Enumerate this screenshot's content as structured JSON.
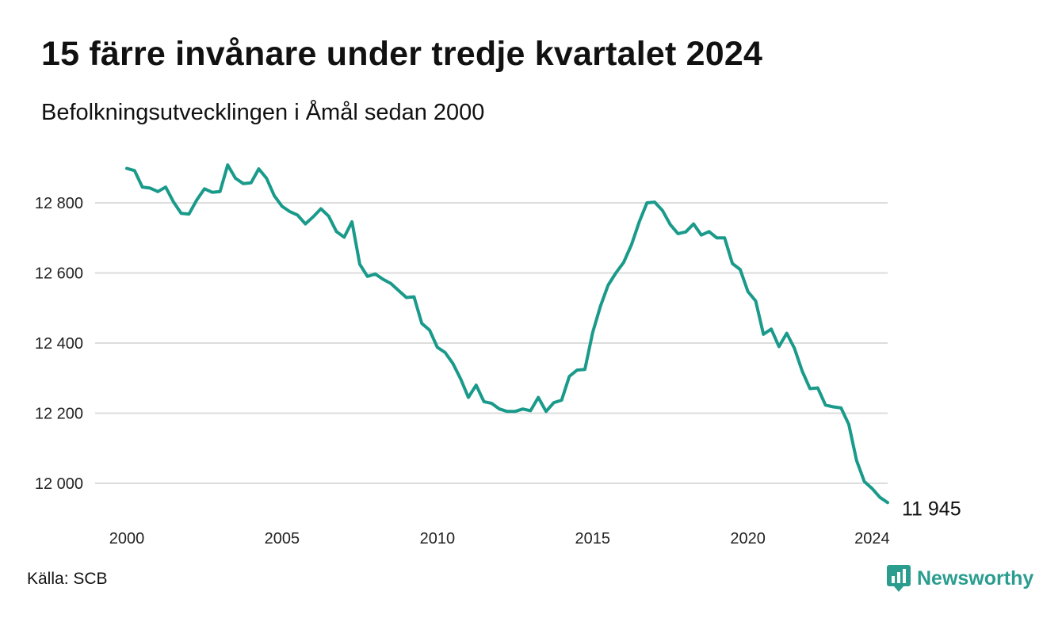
{
  "title": "15 färre invånare under tredje kvartalet 2024",
  "subtitle": "Befolkningsutvecklingen i Åmål sedan 2000",
  "source": "Källa: SCB",
  "brand": {
    "name": "Newsworthy",
    "icon": "newsworthy-logo-icon",
    "color": "#2a9d8f"
  },
  "chart_data": {
    "type": "line",
    "title": "15 färre invånare under tredje kvartalet 2024",
    "subtitle": "Befolkningsutvecklingen i Åmål sedan 2000",
    "xlabel": "",
    "ylabel": "",
    "xlim": [
      2000,
      2024.5
    ],
    "ylim": [
      11940,
      12920
    ],
    "x_ticks": [
      2000,
      2005,
      2010,
      2015,
      2020,
      2024
    ],
    "x_tick_labels": [
      "2000",
      "2005",
      "2010",
      "2015",
      "2020",
      "2024"
    ],
    "y_ticks": [
      12000,
      12200,
      12400,
      12600,
      12800
    ],
    "y_tick_labels": [
      "12 000",
      "12 200",
      "12 400",
      "12 600",
      "12 800"
    ],
    "grid": "horizontal",
    "line_color": "#1a9a8a",
    "grid_color": "#dcdcdc",
    "end_label": "11 945",
    "series": [
      {
        "x": [
          2000.0,
          2000.25,
          2000.5,
          2000.75,
          2001.0,
          2001.25,
          2001.5,
          2001.75,
          2002.0,
          2002.25,
          2002.5,
          2002.75,
          2003.0,
          2003.25,
          2003.5,
          2003.75,
          2004.0,
          2004.25,
          2004.5,
          2004.75,
          2005.0,
          2005.25,
          2005.5,
          2005.75,
          2006.0,
          2006.25,
          2006.5,
          2006.75,
          2007.0,
          2007.25,
          2007.5,
          2007.75,
          2008.0,
          2008.25,
          2008.5,
          2008.75,
          2009.0,
          2009.25,
          2009.5,
          2009.75,
          2010.0,
          2010.25,
          2010.5,
          2010.75,
          2011.0,
          2011.25,
          2011.5,
          2011.75,
          2012.0,
          2012.25,
          2012.5,
          2012.75,
          2013.0,
          2013.25,
          2013.5,
          2013.75,
          2014.0,
          2014.25,
          2014.5,
          2014.75,
          2015.0,
          2015.25,
          2015.5,
          2015.75,
          2016.0,
          2016.25,
          2016.5,
          2016.75,
          2017.0,
          2017.25,
          2017.5,
          2017.75,
          2018.0,
          2018.25,
          2018.5,
          2018.75,
          2019.0,
          2019.25,
          2019.5,
          2019.75,
          2020.0,
          2020.25,
          2020.5,
          2020.75,
          2021.0,
          2021.25,
          2021.5,
          2021.75,
          2022.0,
          2022.25,
          2022.5,
          2022.75,
          2023.0,
          2023.25,
          2023.5,
          2023.75,
          2024.0,
          2024.25,
          2024.5
        ],
        "y": [
          12898,
          12892,
          12845,
          12842,
          12832,
          12845,
          12803,
          12770,
          12768,
          12808,
          12840,
          12830,
          12832,
          12908,
          12870,
          12855,
          12857,
          12897,
          12870,
          12820,
          12790,
          12775,
          12765,
          12740,
          12760,
          12783,
          12762,
          12718,
          12702,
          12746,
          12625,
          12590,
          12597,
          12582,
          12570,
          12550,
          12530,
          12532,
          12456,
          12437,
          12388,
          12373,
          12342,
          12298,
          12245,
          12280,
          12233,
          12228,
          12212,
          12205,
          12205,
          12212,
          12207,
          12245,
          12205,
          12230,
          12237,
          12305,
          12323,
          12325,
          12430,
          12505,
          12565,
          12600,
          12630,
          12680,
          12745,
          12800,
          12802,
          12778,
          12738,
          12712,
          12717,
          12740,
          12708,
          12718,
          12700,
          12700,
          12627,
          12610,
          12547,
          12520,
          12425,
          12440,
          12390,
          12428,
          12385,
          12320,
          12270,
          12272,
          12223,
          12218,
          12215,
          12168,
          12065,
          12005,
          11985,
          11960,
          11945
        ]
      }
    ]
  }
}
